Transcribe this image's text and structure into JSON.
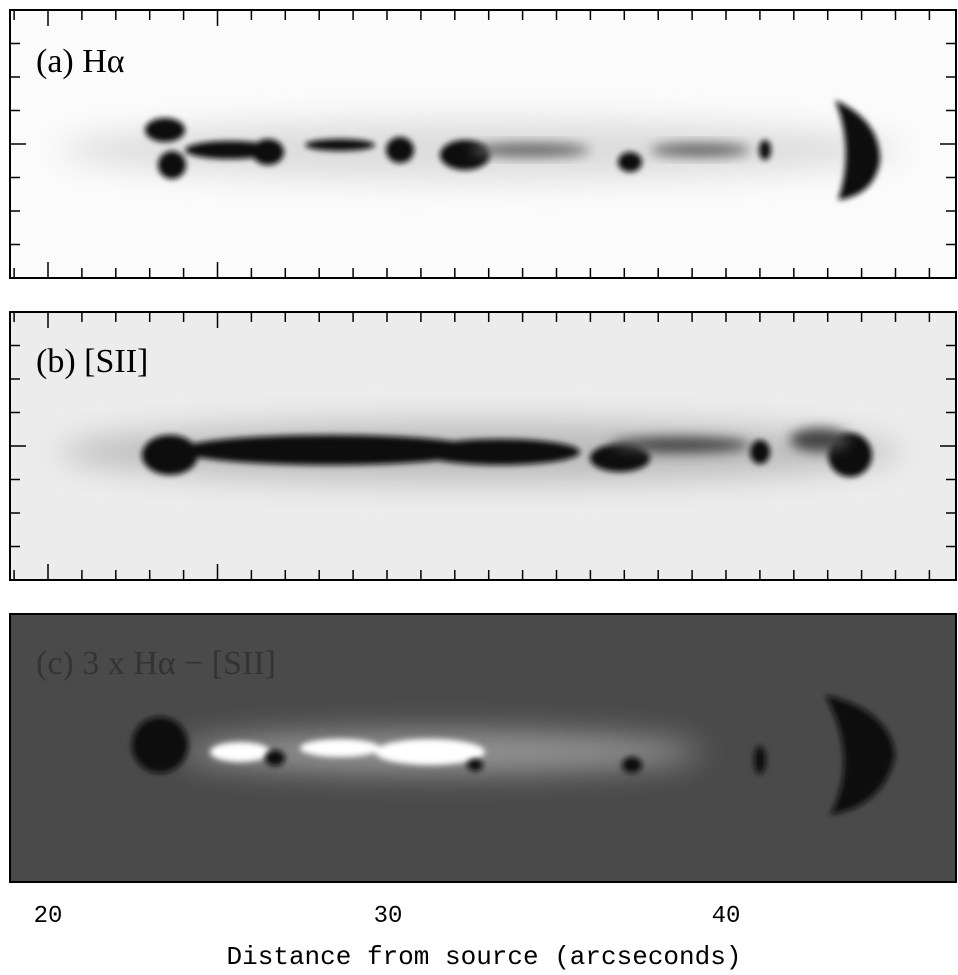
{
  "panels": [
    {
      "label": "(a) Hα"
    },
    {
      "label": "(b) [SII]"
    },
    {
      "label": "(c) 3 x Hα − [SII]"
    }
  ],
  "x_axis": {
    "label": "Distance from source (arcseconds)",
    "ticks": [
      "20",
      "30",
      "40"
    ]
  }
}
